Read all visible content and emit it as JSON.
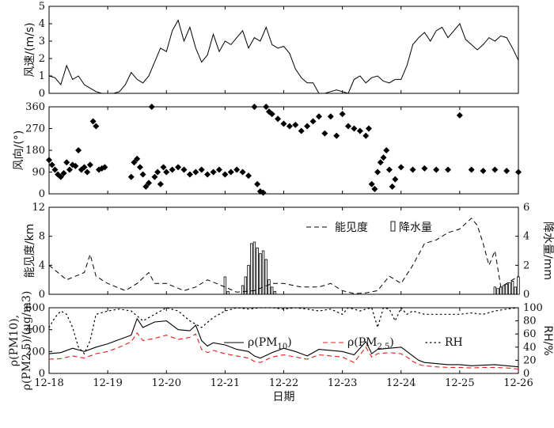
{
  "chart_data": [
    {
      "type": "line",
      "panel": "wind-speed",
      "ylabel": "风速/(m/s)",
      "ylim": [
        0,
        5
      ],
      "yticks": [
        "0",
        "1",
        "2",
        "3",
        "4",
        "5"
      ],
      "series": [
        {
          "color": "#000000",
          "style": "solid",
          "x": [
            0,
            0.1,
            0.2,
            0.3,
            0.4,
            0.5,
            0.6,
            0.7,
            0.8,
            0.9,
            1,
            1.1,
            1.2,
            1.3,
            1.4,
            1.5,
            1.6,
            1.7,
            1.8,
            1.9,
            2,
            2.1,
            2.2,
            2.3,
            2.4,
            2.5,
            2.6,
            2.7,
            2.8,
            2.9,
            3,
            3.1,
            3.2,
            3.3,
            3.4,
            3.5,
            3.6,
            3.7,
            3.8,
            3.9,
            4,
            4.1,
            4.2,
            4.3,
            4.4,
            4.5,
            4.6,
            4.7,
            4.8,
            4.9,
            5,
            5.1,
            5.2,
            5.3,
            5.4,
            5.5,
            5.6,
            5.7,
            5.8,
            5.9,
            6,
            6.1,
            6.2,
            6.3,
            6.4,
            6.5,
            6.6,
            6.7,
            6.8,
            6.9,
            7,
            7.1,
            7.2,
            7.3,
            7.4,
            7.5,
            7.6,
            7.7,
            7.8,
            7.9,
            8
          ],
          "y": [
            1.0,
            0.9,
            0.5,
            1.6,
            0.8,
            1.0,
            0.5,
            0.3,
            0.1,
            0.0,
            0.0,
            0.0,
            0.1,
            0.5,
            1.2,
            0.8,
            0.6,
            1.0,
            1.8,
            2.6,
            2.4,
            3.6,
            4.2,
            3.0,
            3.8,
            2.6,
            1.8,
            2.2,
            3.4,
            2.4,
            3.0,
            2.8,
            3.2,
            3.6,
            2.6,
            3.2,
            3.0,
            3.8,
            2.8,
            2.6,
            2.7,
            2.3,
            1.4,
            0.9,
            0.6,
            0.6,
            0.0,
            0.0,
            0.1,
            0.2,
            0.1,
            0.0,
            0.8,
            1.0,
            0.6,
            0.9,
            1.0,
            0.7,
            0.6,
            0.8,
            0.8,
            1.6,
            2.8,
            3.2,
            3.5,
            3.0,
            3.6,
            3.8,
            3.2,
            3.6,
            4.0,
            3.1,
            2.8,
            2.5,
            2.8,
            3.2,
            3.0,
            3.3,
            3.2,
            2.6,
            1.9
          ]
        }
      ]
    },
    {
      "type": "scatter",
      "panel": "wind-direction",
      "ylabel": "风向/(°)",
      "ylim": [
        0,
        360
      ],
      "yticks": [
        "0",
        "90",
        "180",
        "270",
        "360"
      ],
      "series": [
        {
          "color": "#000000",
          "marker": "diamond",
          "x": [
            0,
            0.05,
            0.1,
            0.15,
            0.2,
            0.25,
            0.3,
            0.35,
            0.4,
            0.45,
            0.5,
            0.55,
            0.6,
            0.65,
            0.7,
            0.75,
            0.8,
            0.85,
            0.9,
            0.95,
            1.4,
            1.45,
            1.5,
            1.55,
            1.6,
            1.65,
            1.7,
            1.75,
            1.8,
            1.85,
            1.9,
            1.95,
            2.0,
            2.1,
            2.2,
            2.3,
            2.4,
            2.5,
            2.6,
            2.7,
            2.8,
            2.9,
            3.0,
            3.1,
            3.2,
            3.3,
            3.4,
            3.5,
            3.55,
            3.6,
            3.65,
            3.7,
            3.75,
            3.8,
            3.9,
            4.0,
            4.1,
            4.2,
            4.3,
            4.4,
            4.5,
            4.6,
            4.7,
            4.8,
            4.9,
            5.0,
            5.1,
            5.2,
            5.3,
            5.4,
            5.45,
            5.5,
            5.55,
            5.6,
            5.65,
            5.7,
            5.75,
            5.8,
            5.85,
            5.9,
            6.0,
            6.2,
            6.4,
            6.6,
            6.8,
            7.0,
            7.2,
            7.4,
            7.6,
            7.8,
            8.0
          ],
          "y": [
            140,
            120,
            100,
            80,
            70,
            85,
            130,
            100,
            120,
            115,
            180,
            100,
            110,
            90,
            120,
            300,
            280,
            100,
            105,
            110,
            70,
            130,
            145,
            110,
            80,
            30,
            45,
            360,
            70,
            90,
            40,
            110,
            90,
            100,
            110,
            100,
            80,
            90,
            100,
            80,
            90,
            100,
            80,
            90,
            100,
            90,
            75,
            360,
            40,
            10,
            5,
            360,
            340,
            330,
            310,
            290,
            280,
            285,
            260,
            280,
            300,
            320,
            250,
            320,
            240,
            330,
            280,
            270,
            260,
            240,
            270,
            40,
            20,
            90,
            130,
            150,
            180,
            100,
            30,
            60,
            110,
            100,
            105,
            100,
            100,
            325,
            100,
            95,
            100,
            95,
            90
          ]
        }
      ]
    },
    {
      "type": "line",
      "panel": "visibility-precipitation",
      "ylabel": "能见度/km",
      "ylabel_right": "降水量/mm",
      "ylim": [
        0,
        12
      ],
      "ylim_right": [
        0,
        6
      ],
      "yticks": [
        "0",
        "4",
        "8",
        "12"
      ],
      "yticks_right": [
        "0",
        "2",
        "4",
        "6"
      ],
      "legend_location": "upper-center",
      "series": [
        {
          "name": "能见度",
          "color": "#000000",
          "style": "dashed",
          "x": [
            0,
            0.3,
            0.6,
            0.7,
            0.8,
            1.0,
            1.3,
            1.5,
            1.7,
            1.8,
            2.0,
            2.3,
            2.5,
            2.7,
            3.0,
            3.2,
            3.5,
            3.8,
            4.0,
            4.3,
            4.6,
            4.8,
            5.0,
            5.2,
            5.4,
            5.6,
            5.8,
            6.0,
            6.2,
            6.4,
            6.6,
            6.8,
            7.0,
            7.2,
            7.3,
            7.4,
            7.5,
            7.6,
            7.7,
            7.8,
            8.0
          ],
          "y": [
            4.0,
            2.0,
            3.0,
            5.5,
            2.5,
            1.5,
            0.5,
            1.5,
            3.0,
            1.5,
            1.5,
            0.5,
            1.0,
            2.0,
            1.0,
            0.3,
            0.5,
            1.5,
            1.5,
            1.0,
            1.0,
            1.5,
            0.5,
            0.1,
            0.2,
            0.5,
            2.5,
            1.5,
            4.0,
            7.0,
            7.5,
            8.5,
            9.0,
            10.5,
            9.5,
            7.0,
            4.0,
            6.0,
            1.0,
            1.5,
            2.5
          ]
        },
        {
          "name": "降水量",
          "type": "bar",
          "color": "#000000",
          "x": [
            3.0,
            3.05,
            3.3,
            3.35,
            3.4,
            3.45,
            3.5,
            3.55,
            3.6,
            3.65,
            3.7,
            3.75,
            3.8,
            3.85,
            7.6,
            7.65,
            7.7,
            7.75,
            7.8,
            7.85,
            7.9,
            7.95,
            8.0
          ],
          "y": [
            1.2,
            0.2,
            0.6,
            1.2,
            2.0,
            3.5,
            3.6,
            3.2,
            2.8,
            3.0,
            2.4,
            1.0,
            0.5,
            0.2,
            0.5,
            0.4,
            0.5,
            0.6,
            0.7,
            0.8,
            0.9,
            0.5,
            1.2
          ]
        }
      ]
    },
    {
      "type": "line",
      "panel": "pm-rh",
      "ylabel": "ρ(PM10),\nρ(PM2.5)/(μg/m3)",
      "ylabel_right": "RH/%",
      "xlabel": "日期",
      "ylim": [
        0,
        600
      ],
      "ylim_right": [
        0,
        100
      ],
      "yticks": [
        "0",
        "200",
        "400",
        "600"
      ],
      "yticks_right": [
        "0",
        "20",
        "40",
        "60",
        "80",
        "100"
      ],
      "legend_location": "center-right",
      "x_tick_labels": [
        "12-18",
        "12-19",
        "12-20",
        "12-21",
        "12-22",
        "12-23",
        "12-24",
        "12-25",
        "12-26"
      ],
      "series": [
        {
          "name": "ρ(PM10)",
          "name_main": "ρ(PM",
          "name_sub": "10",
          "name_tail": ")",
          "color": "#000000",
          "style": "solid",
          "x": [
            0,
            0.2,
            0.4,
            0.6,
            0.8,
            1.0,
            1.2,
            1.4,
            1.5,
            1.6,
            1.8,
            2.0,
            2.2,
            2.4,
            2.5,
            2.6,
            2.7,
            2.8,
            3.0,
            3.2,
            3.4,
            3.5,
            3.6,
            3.8,
            4.0,
            4.2,
            4.4,
            4.6,
            4.8,
            5.0,
            5.2,
            5.4,
            5.5,
            5.6,
            5.8,
            6.0,
            6.1,
            6.2,
            6.3,
            6.4,
            6.6,
            6.8,
            7.0,
            7.2,
            7.4,
            7.6,
            7.8,
            8.0
          ],
          "y": [
            180,
            190,
            230,
            200,
            240,
            270,
            310,
            350,
            500,
            420,
            470,
            480,
            400,
            390,
            440,
            300,
            250,
            280,
            260,
            220,
            200,
            160,
            140,
            190,
            230,
            200,
            160,
            220,
            210,
            200,
            170,
            290,
            180,
            220,
            230,
            240,
            200,
            160,
            120,
            100,
            90,
            80,
            80,
            70,
            75,
            80,
            70,
            60
          ]
        },
        {
          "name": "ρ(PM2.5)",
          "name_main": "ρ(PM",
          "name_sub": "2.5",
          "name_tail": ")",
          "color": "#e0201c",
          "style": "dashed",
          "x": [
            0,
            0.2,
            0.4,
            0.6,
            0.8,
            1.0,
            1.2,
            1.4,
            1.5,
            1.6,
            1.8,
            2.0,
            2.2,
            2.4,
            2.5,
            2.6,
            2.7,
            2.8,
            3.0,
            3.2,
            3.4,
            3.5,
            3.6,
            3.8,
            4.0,
            4.2,
            4.4,
            4.6,
            4.8,
            5.0,
            5.2,
            5.4,
            5.5,
            5.6,
            5.8,
            6.0,
            6.1,
            6.2,
            6.3,
            6.4,
            6.6,
            6.8,
            7.0,
            7.2,
            7.4,
            7.6,
            7.8,
            8.0
          ],
          "y": [
            130,
            135,
            160,
            140,
            180,
            200,
            240,
            290,
            370,
            300,
            320,
            350,
            310,
            330,
            360,
            220,
            190,
            210,
            180,
            160,
            140,
            110,
            100,
            150,
            170,
            150,
            130,
            170,
            160,
            150,
            100,
            240,
            150,
            180,
            190,
            180,
            150,
            110,
            80,
            70,
            60,
            55,
            55,
            50,
            55,
            55,
            50,
            40
          ]
        },
        {
          "name": "RH",
          "color": "#000000",
          "style": "dotted",
          "axis": "right",
          "x": [
            0,
            0.1,
            0.2,
            0.3,
            0.4,
            0.5,
            0.6,
            0.7,
            0.8,
            1.0,
            1.2,
            1.4,
            1.6,
            1.8,
            2.0,
            2.2,
            2.4,
            2.6,
            2.8,
            3.0,
            3.2,
            3.4,
            3.6,
            3.8,
            4.0,
            4.2,
            4.4,
            4.6,
            4.8,
            5.0,
            5.1,
            5.2,
            5.3,
            5.4,
            5.5,
            5.6,
            5.7,
            5.8,
            5.9,
            6.0,
            6.1,
            6.2,
            6.4,
            6.6,
            6.8,
            7.0,
            7.2,
            7.4,
            7.6,
            7.8,
            8.0
          ],
          "y": [
            70,
            85,
            95,
            90,
            70,
            40,
            30,
            50,
            90,
            95,
            98,
            95,
            80,
            90,
            100,
            95,
            80,
            70,
            85,
            95,
            100,
            98,
            100,
            100,
            98,
            100,
            98,
            95,
            98,
            90,
            100,
            98,
            95,
            98,
            100,
            70,
            100,
            98,
            80,
            100,
            90,
            95,
            90,
            90,
            90,
            90,
            92,
            90,
            95,
            98,
            100
          ]
        }
      ]
    }
  ]
}
